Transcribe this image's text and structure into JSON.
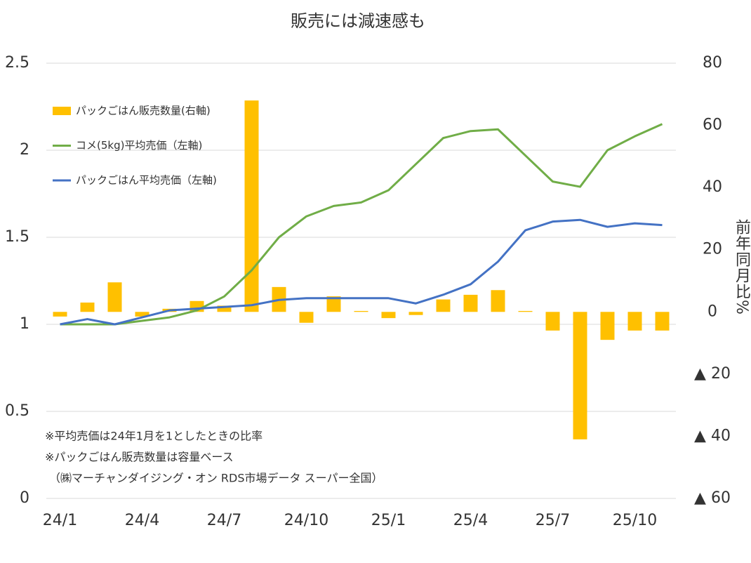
{
  "chart_data": {
    "type": "combo",
    "title": "販売には減速感も",
    "categories": [
      "24/1",
      null,
      null,
      "24/4",
      null,
      null,
      "24/7",
      null,
      null,
      "24/10",
      null,
      null,
      "25/1",
      null,
      null,
      "25/4",
      null,
      null,
      "25/7",
      null,
      null,
      "25/10",
      null
    ],
    "series": [
      {
        "name": "パックごはん販売数量(右軸)",
        "type": "bar",
        "axis": "y2",
        "color": "#ffc000",
        "values": [
          -1.5,
          3,
          9.5,
          -1.5,
          1,
          3.5,
          2,
          68,
          8,
          -3.5,
          5,
          0.3,
          -2,
          -1,
          4,
          5.5,
          7,
          0.3,
          -6,
          -41,
          -9,
          -6,
          -6
        ]
      },
      {
        "name": "コメ(5kg)平均売価（左軸)",
        "type": "line",
        "color": "#70ad47",
        "values": [
          1.0,
          1.0,
          1.0,
          1.02,
          1.04,
          1.08,
          1.16,
          1.31,
          1.5,
          1.62,
          1.68,
          1.7,
          1.77,
          1.92,
          2.07,
          2.11,
          2.12,
          1.97,
          1.82,
          1.79,
          2.0,
          2.08,
          2.15
        ]
      },
      {
        "name": "パックごはん平均売価（左軸)",
        "type": "line",
        "color": "#4472c4",
        "values": [
          1.0,
          1.03,
          1.0,
          1.04,
          1.08,
          1.09,
          1.1,
          1.11,
          1.14,
          1.15,
          1.15,
          1.15,
          1.15,
          1.12,
          1.17,
          1.23,
          1.36,
          1.54,
          1.59,
          1.6,
          1.56,
          1.58,
          1.57
        ]
      }
    ],
    "ylim": [
      0,
      2.5
    ],
    "yticks": [
      0,
      0.5,
      1,
      1.5,
      2,
      2.5
    ],
    "y2lim": [
      -60,
      80
    ],
    "y2ticks": [
      {
        "value": -60,
        "label": "▲ 60"
      },
      {
        "value": -40,
        "label": "▲ 40"
      },
      {
        "value": -20,
        "label": "▲ 20"
      },
      0,
      20,
      40,
      60,
      80
    ],
    "y2label": "前年同月比%",
    "grid": true,
    "legend": "upper left",
    "annotations": [
      "※平均売価は24年1月を1としたときの比率",
      "※パックごはん販売数量は容量ベース",
      "（㈱マーチャンダイジング・オン RDS市場データ スーパー全国）"
    ]
  }
}
